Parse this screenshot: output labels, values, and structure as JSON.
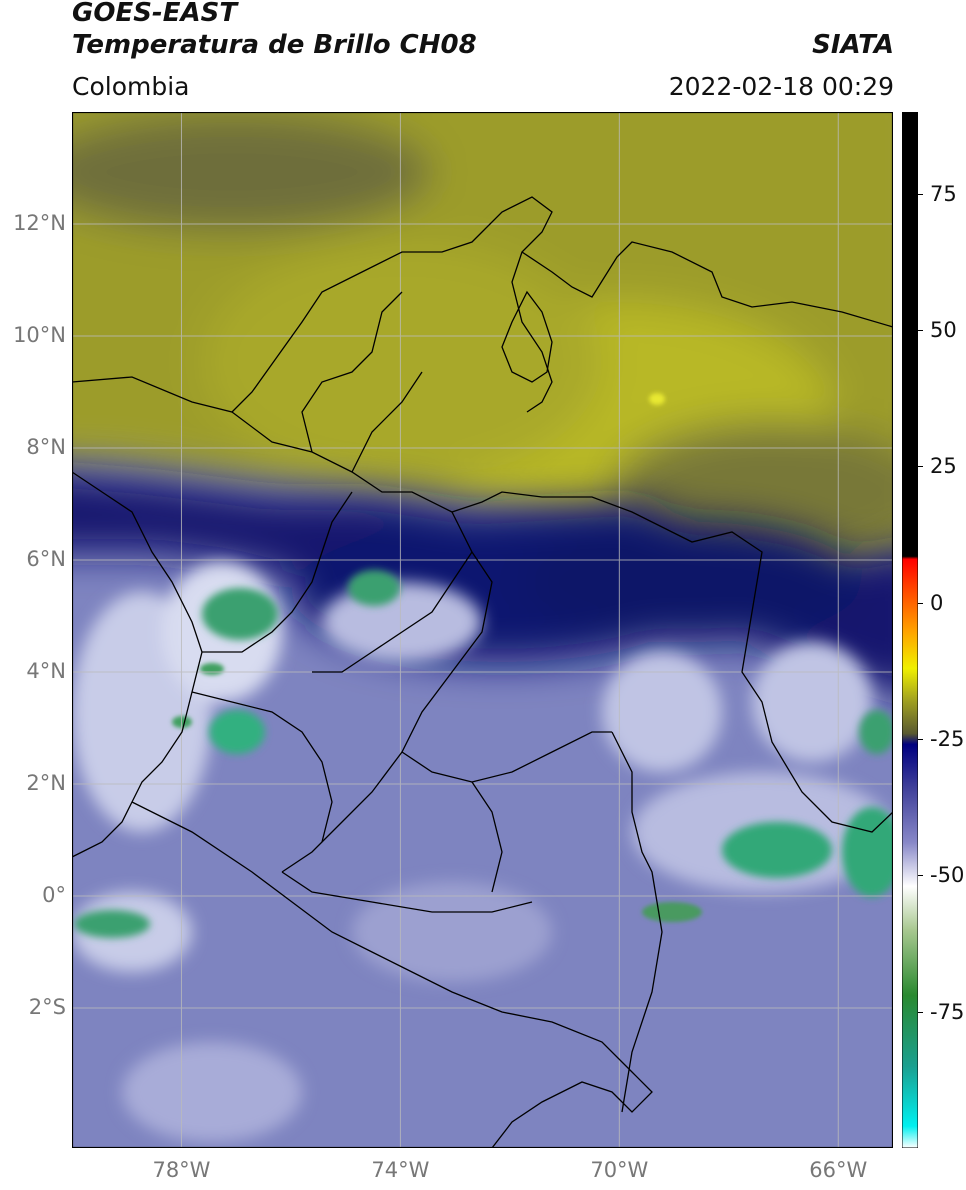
{
  "header": {
    "satellite": "GOES-EAST",
    "product": "Temperatura de Brillo CH08",
    "agency": "SIATA",
    "region": "Colombia",
    "datetime": "2022-02-18 00:29"
  },
  "map": {
    "lon_range": [
      -80.0,
      -65.0
    ],
    "lat_range": [
      -4.5,
      14.0
    ],
    "grid": true,
    "lat_ticks": [
      {
        "value": 12,
        "label": "12°N"
      },
      {
        "value": 10,
        "label": "10°N"
      },
      {
        "value": 8,
        "label": "8°N"
      },
      {
        "value": 6,
        "label": "6°N"
      },
      {
        "value": 4,
        "label": "4°N"
      },
      {
        "value": 2,
        "label": "2°N"
      },
      {
        "value": 0,
        "label": "0°"
      },
      {
        "value": -2,
        "label": "2°S"
      }
    ],
    "lon_ticks": [
      {
        "value": -78,
        "label": "78°W"
      },
      {
        "value": -74,
        "label": "74°W"
      },
      {
        "value": -70,
        "label": "70°W"
      },
      {
        "value": -66,
        "label": "66°W"
      }
    ],
    "colors": {
      "dry_air": "#9a9a2a",
      "moist_air": "#1a1e7a",
      "clouds": "#8f95c8",
      "cold_tops": "#3aaa6a",
      "borders": "#000000",
      "grid": "#bbbbbb"
    }
  },
  "colorbar": {
    "range": [
      -100,
      90
    ],
    "stops": [
      {
        "value": -100,
        "color": "#ffffff"
      },
      {
        "value": -96,
        "color": "#00f0f0"
      },
      {
        "value": -85,
        "color": "#1aa090"
      },
      {
        "value": -72,
        "color": "#2a8a30"
      },
      {
        "value": -60,
        "color": "#a8c890"
      },
      {
        "value": -52,
        "color": "#ffffff"
      },
      {
        "value": -44,
        "color": "#8888c8"
      },
      {
        "value": -34,
        "color": "#40409a"
      },
      {
        "value": -26,
        "color": "#000080"
      },
      {
        "value": -24,
        "color": "#5a5a30"
      },
      {
        "value": -18,
        "color": "#a0a020"
      },
      {
        "value": -12,
        "color": "#f0f000"
      },
      {
        "value": -5,
        "color": "#ffa000"
      },
      {
        "value": 3,
        "color": "#ff4000"
      },
      {
        "value": 8,
        "color": "#ff0000"
      },
      {
        "value": 8.5,
        "color": "#000000"
      },
      {
        "value": 90,
        "color": "#000000"
      }
    ],
    "ticks": [
      {
        "value": 75,
        "label": "75"
      },
      {
        "value": 50,
        "label": "50"
      },
      {
        "value": 25,
        "label": "25"
      },
      {
        "value": 0,
        "label": "0"
      },
      {
        "value": -25,
        "label": "-25"
      },
      {
        "value": -50,
        "label": "-50"
      },
      {
        "value": -75,
        "label": "-75"
      }
    ]
  }
}
